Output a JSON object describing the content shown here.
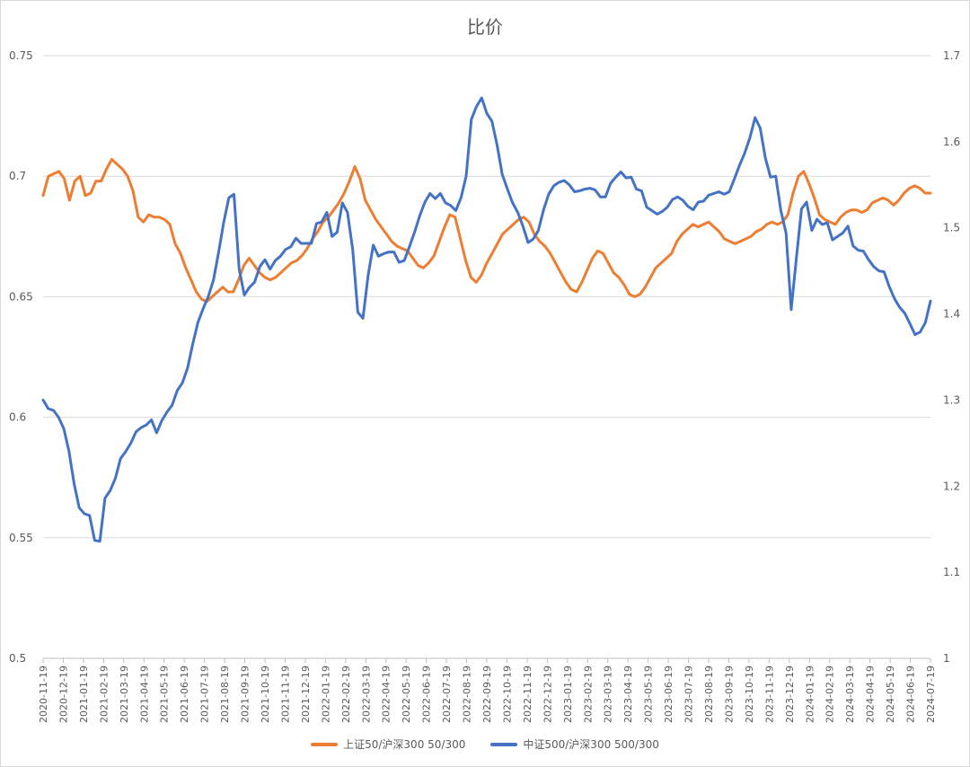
{
  "chart_data": {
    "type": "line",
    "title": "比价",
    "y_left": {
      "min": 0.5,
      "max": 0.75,
      "ticks": [
        "0.5",
        "0.55",
        "0.6",
        "0.65",
        "0.7",
        "0.75"
      ]
    },
    "y_right": {
      "min": 1.0,
      "max": 1.7,
      "ticks": [
        "1",
        "1.1",
        "1.2",
        "1.3",
        "1.4",
        "1.5",
        "1.6",
        "1.7"
      ]
    },
    "x_tick_labels": [
      "2020-11-19",
      "2020-12-19",
      "2021-01-19",
      "2021-02-19",
      "2021-03-19",
      "2021-04-19",
      "2021-05-19",
      "2021-06-19",
      "2021-07-19",
      "2021-08-19",
      "2021-09-19",
      "2021-10-19",
      "2021-11-19",
      "2021-12-19",
      "2022-01-19",
      "2022-02-19",
      "2022-03-19",
      "2022-04-19",
      "2022-05-19",
      "2022-06-19",
      "2022-07-19",
      "2022-08-19",
      "2022-09-19",
      "2022-10-19",
      "2022-11-19",
      "2022-12-19",
      "2023-01-19",
      "2023-02-19",
      "2023-03-19",
      "2023-04-19",
      "2023-05-19",
      "2023-06-19",
      "2023-07-19",
      "2023-08-19",
      "2023-09-19",
      "2023-10-19",
      "2023-11-19",
      "2023-12-19",
      "2024-01-19",
      "2024-02-19",
      "2024-03-19",
      "2024-04-19",
      "2024-05-19",
      "2024-06-19",
      "2024-07-19"
    ],
    "series": [
      {
        "name": "上证50/沪深300 50/300",
        "axis": "left",
        "color": "#ED7D31",
        "values": [
          0.692,
          0.7,
          0.701,
          0.702,
          0.699,
          0.69,
          0.698,
          0.7,
          0.692,
          0.693,
          0.698,
          0.698,
          0.703,
          0.707,
          0.705,
          0.703,
          0.7,
          0.694,
          0.683,
          0.681,
          0.684,
          0.683,
          0.683,
          0.682,
          0.68,
          0.672,
          0.668,
          0.662,
          0.657,
          0.652,
          0.649,
          0.648,
          0.65,
          0.652,
          0.654,
          0.652,
          0.652,
          0.657,
          0.663,
          0.666,
          0.663,
          0.66,
          0.658,
          0.657,
          0.658,
          0.66,
          0.662,
          0.664,
          0.665,
          0.667,
          0.67,
          0.674,
          0.677,
          0.681,
          0.683,
          0.686,
          0.689,
          0.693,
          0.698,
          0.704,
          0.699,
          0.69,
          0.686,
          0.682,
          0.679,
          0.676,
          0.673,
          0.671,
          0.67,
          0.669,
          0.666,
          0.663,
          0.662,
          0.664,
          0.667,
          0.673,
          0.679,
          0.684,
          0.683,
          0.674,
          0.665,
          0.658,
          0.656,
          0.659,
          0.664,
          0.668,
          0.672,
          0.676,
          0.678,
          0.68,
          0.682,
          0.683,
          0.681,
          0.676,
          0.673,
          0.671,
          0.668,
          0.664,
          0.66,
          0.656,
          0.653,
          0.652,
          0.656,
          0.661,
          0.666,
          0.669,
          0.668,
          0.664,
          0.66,
          0.658,
          0.655,
          0.651,
          0.65,
          0.651,
          0.654,
          0.658,
          0.662,
          0.664,
          0.666,
          0.668,
          0.673,
          0.676,
          0.678,
          0.68,
          0.679,
          0.68,
          0.681,
          0.679,
          0.677,
          0.674,
          0.673,
          0.672,
          0.673,
          0.674,
          0.675,
          0.677,
          0.678,
          0.68,
          0.681,
          0.68,
          0.681,
          0.684,
          0.693,
          0.7,
          0.702,
          0.697,
          0.691,
          0.684,
          0.682,
          0.681,
          0.68,
          0.683,
          0.685,
          0.686,
          0.686,
          0.685,
          0.686,
          0.689,
          0.69,
          0.691,
          0.69,
          0.688,
          0.69,
          0.693,
          0.695,
          0.696,
          0.695,
          0.693,
          0.693
        ]
      },
      {
        "name": "中证500/沪深300 500/300",
        "axis": "right",
        "color": "#4472C4",
        "values": [
          1.3,
          1.29,
          1.288,
          1.28,
          1.267,
          1.241,
          1.203,
          1.175,
          1.168,
          1.166,
          1.137,
          1.136,
          1.186,
          1.195,
          1.209,
          1.232,
          1.24,
          1.25,
          1.263,
          1.268,
          1.271,
          1.277,
          1.262,
          1.276,
          1.286,
          1.294,
          1.311,
          1.32,
          1.337,
          1.365,
          1.39,
          1.406,
          1.42,
          1.439,
          1.471,
          1.506,
          1.535,
          1.539,
          1.452,
          1.422,
          1.431,
          1.437,
          1.455,
          1.463,
          1.452,
          1.462,
          1.467,
          1.475,
          1.478,
          1.488,
          1.482,
          1.482,
          1.482,
          1.505,
          1.507,
          1.518,
          1.49,
          1.495,
          1.529,
          1.518,
          1.475,
          1.402,
          1.395,
          1.445,
          1.48,
          1.467,
          1.47,
          1.472,
          1.472,
          1.46,
          1.462,
          1.478,
          1.495,
          1.514,
          1.53,
          1.54,
          1.534,
          1.54,
          1.529,
          1.526,
          1.52,
          1.535,
          1.56,
          1.626,
          1.641,
          1.651,
          1.633,
          1.624,
          1.596,
          1.562,
          1.545,
          1.529,
          1.518,
          1.502,
          1.483,
          1.487,
          1.497,
          1.521,
          1.539,
          1.549,
          1.553,
          1.555,
          1.55,
          1.542,
          1.543,
          1.545,
          1.546,
          1.544,
          1.536,
          1.536,
          1.552,
          1.559,
          1.565,
          1.558,
          1.559,
          1.545,
          1.543,
          1.524,
          1.52,
          1.516,
          1.519,
          1.524,
          1.533,
          1.536,
          1.532,
          1.525,
          1.521,
          1.53,
          1.531,
          1.538,
          1.54,
          1.542,
          1.539,
          1.542,
          1.557,
          1.573,
          1.587,
          1.605,
          1.628,
          1.616,
          1.581,
          1.559,
          1.56,
          1.52,
          1.494,
          1.405,
          1.465,
          1.522,
          1.53,
          1.497,
          1.51,
          1.504,
          1.506,
          1.486,
          1.49,
          1.494,
          1.502,
          1.479,
          1.474,
          1.473,
          1.463,
          1.455,
          1.45,
          1.449,
          1.432,
          1.418,
          1.408,
          1.401,
          1.389,
          1.376,
          1.379,
          1.39,
          1.415
        ]
      }
    ]
  }
}
